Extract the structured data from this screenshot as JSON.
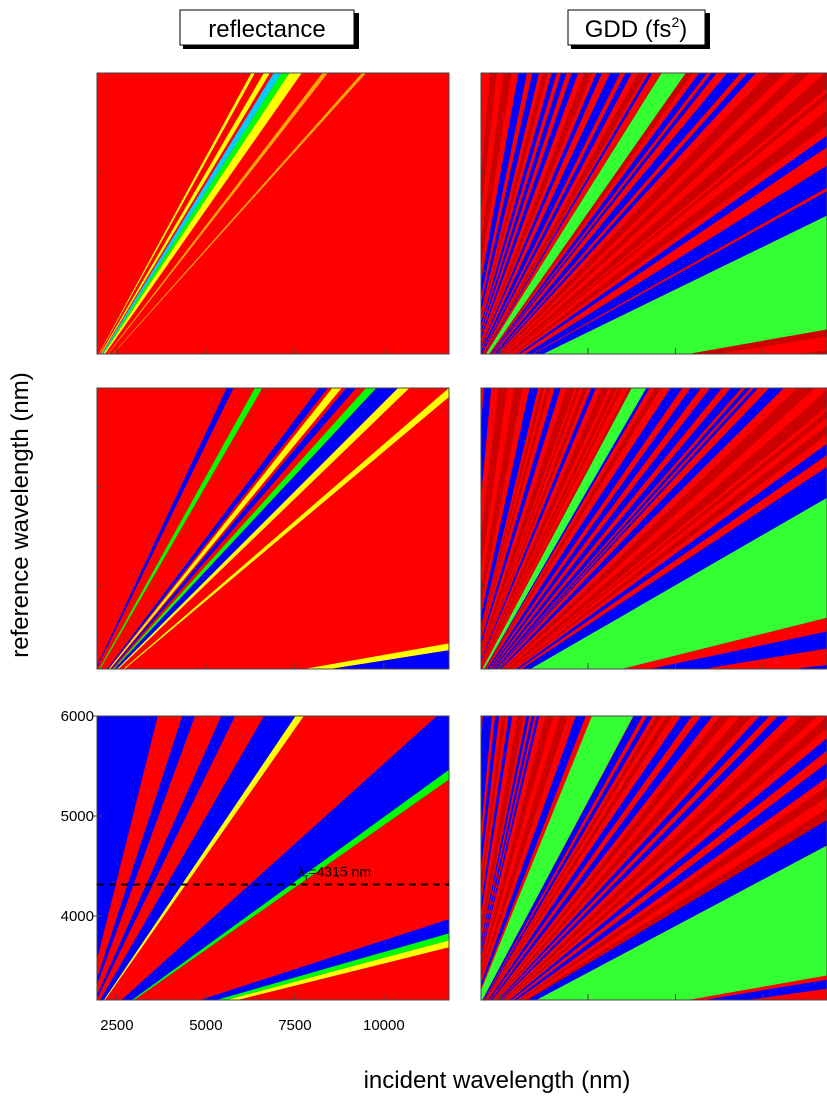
{
  "chart_data": {
    "type": "heatmap",
    "column_titles": [
      [
        "reflectance"
      ],
      [
        "GDD (fs",
        "2",
        ")"
      ]
    ],
    "xlabel": "incident wavelength (nm)",
    "ylabel": "reference wavelength (nm)",
    "xlim": [
      1940,
      11830
    ],
    "xticks": [
      2500,
      5000,
      7500,
      10000
    ],
    "ylim": [
      3160,
      6000
    ],
    "yticks": [
      4000,
      5000,
      6000
    ],
    "annotation": {
      "label": [
        "λ",
        "r",
        "=4315 nm"
      ],
      "value": 4315
    }
  }
}
